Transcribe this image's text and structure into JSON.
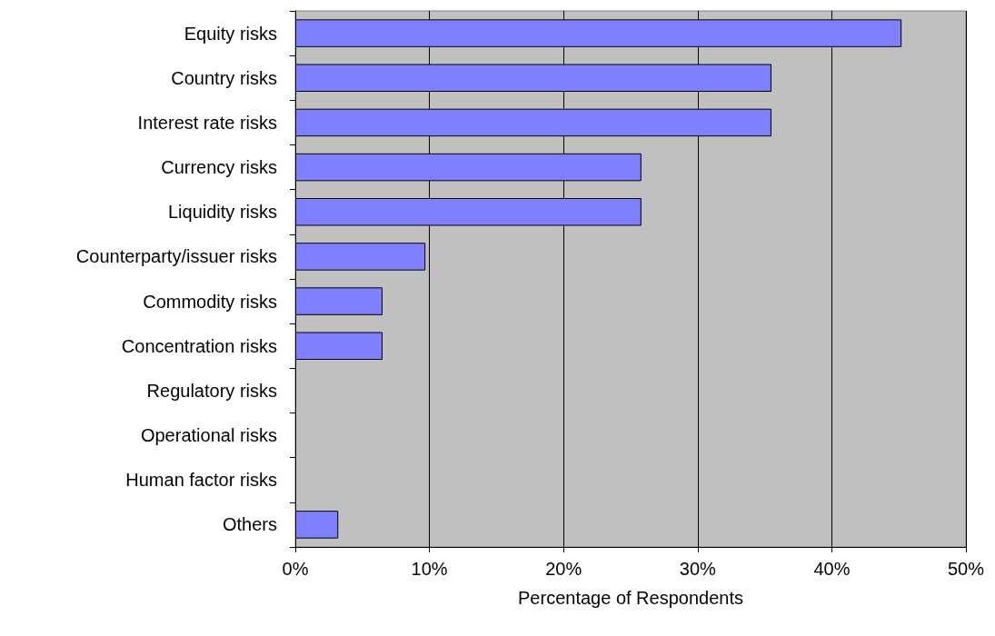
{
  "chart_data": {
    "type": "bar",
    "orientation": "horizontal",
    "xlabel": "Percentage of Respondents",
    "categories": [
      "Equity risks",
      "Country risks",
      "Interest rate risks",
      "Currency risks",
      "Liquidity risks",
      "Counterparty/issuer risks",
      "Commodity risks",
      "Concentration risks",
      "Regulatory risks",
      "Operational risks",
      "Human factor risks",
      "Others"
    ],
    "values": [
      45.2,
      35.5,
      35.5,
      25.8,
      25.8,
      9.7,
      6.5,
      6.5,
      0,
      0,
      0,
      3.2
    ],
    "color": "#8080ff",
    "xlim": [
      0,
      50
    ],
    "xticks": [
      {
        "value": 0,
        "label": "0%"
      },
      {
        "value": 10,
        "label": "10%"
      },
      {
        "value": 20,
        "label": "20%"
      },
      {
        "value": 30,
        "label": "30%"
      },
      {
        "value": 40,
        "label": "40%"
      },
      {
        "value": 50,
        "label": "50%"
      }
    ],
    "grid": "x"
  }
}
